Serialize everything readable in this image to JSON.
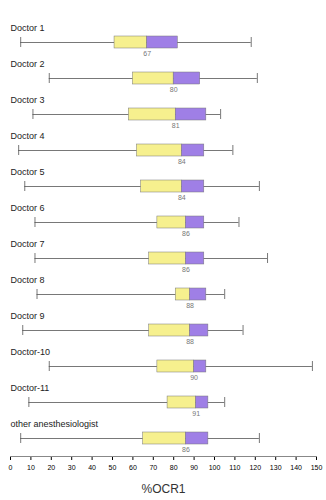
{
  "chart_data": {
    "type": "boxplot",
    "orientation": "horizontal",
    "categories": [
      "Doctor 1",
      "Doctor 2",
      "Doctor 3",
      "Doctor 4",
      "Doctor 5",
      "Doctor 6",
      "Doctor 7",
      "Doctor 8",
      "Doctor 9",
      "Doctor-10",
      "Doctor-11",
      "other anesthesiologist"
    ],
    "min": [
      5,
      19,
      11,
      4,
      7,
      12,
      12,
      13,
      6,
      19,
      9,
      5
    ],
    "q1": [
      51,
      60,
      58,
      62,
      64,
      72,
      68,
      81,
      68,
      72,
      77,
      65
    ],
    "median": [
      67,
      80,
      81,
      84,
      84,
      86,
      86,
      88,
      88,
      90,
      91,
      86
    ],
    "q3": [
      82,
      93,
      96,
      95,
      95,
      95,
      95,
      96,
      97,
      96,
      97,
      97
    ],
    "max": [
      118,
      121,
      103,
      109,
      122,
      112,
      126,
      105,
      114,
      148,
      105,
      122
    ],
    "colors": [
      "#f6f08e",
      "#9f7fe6"
    ],
    "data_labels": true,
    "xlabel": "%OCR1",
    "xlim": [
      0,
      150
    ],
    "xticks": [
      0,
      10,
      20,
      30,
      40,
      50,
      60,
      70,
      80,
      90,
      100,
      110,
      120,
      130,
      140,
      150
    ],
    "grid": false
  }
}
